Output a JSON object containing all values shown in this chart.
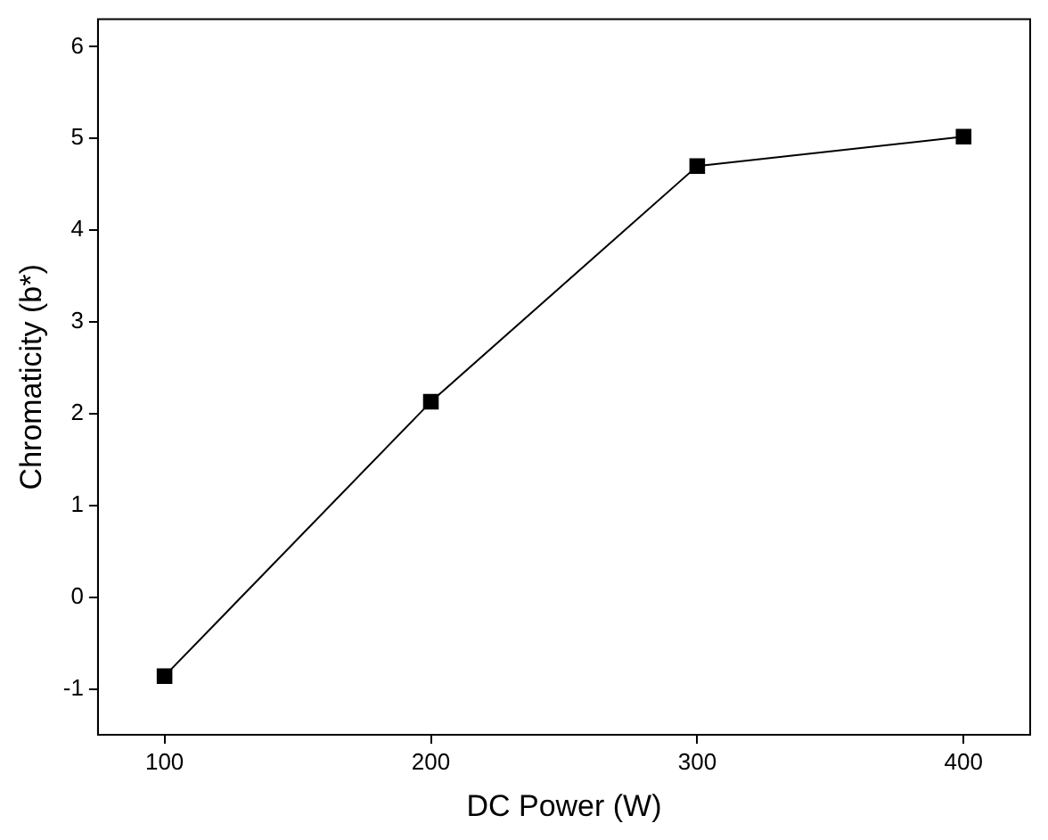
{
  "chart_data": {
    "type": "line",
    "xlabel": "DC Power (W)",
    "ylabel": "Chromaticity (b*)",
    "x": [
      100,
      200,
      300,
      400
    ],
    "series": [
      {
        "color": "#000000",
        "values": [
          -0.86,
          2.13,
          4.7,
          5.02
        ]
      }
    ],
    "xlim": [
      75,
      425
    ],
    "xticks": [
      100,
      200,
      300,
      400
    ],
    "ylim": [
      -1.5,
      6.3
    ],
    "yticks": [
      -1,
      0,
      1,
      2,
      3,
      4,
      5,
      6
    ],
    "marker": "square",
    "line_style": "solid",
    "grid": false,
    "legend": false
  }
}
